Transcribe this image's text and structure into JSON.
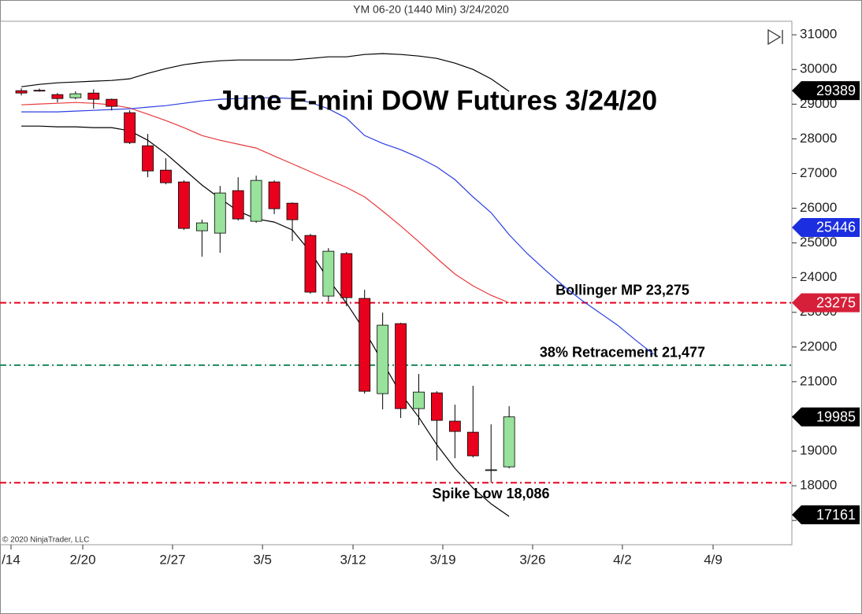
{
  "chart_data": {
    "type": "candlestick",
    "title": "YM 06-20 (1440 Min)  3/24/2020",
    "subtitle": "June E-mini DOW Futures 3/24/20",
    "copyright": "© 2020 NinjaTrader, LLC",
    "up_color": "#98e29b",
    "down_color": "#e8001c",
    "x": [
      0,
      1,
      2,
      3,
      4,
      5,
      6,
      7,
      8,
      9,
      10,
      11,
      12,
      13,
      14,
      15,
      16,
      17,
      18,
      19,
      20,
      21,
      22,
      23,
      24,
      25,
      26,
      27
    ],
    "open": [
      29389,
      29400,
      29276,
      29185,
      29320,
      29140,
      28754,
      27801,
      27098,
      26758,
      25351,
      25283,
      26508,
      25624,
      26758,
      26145,
      25215,
      23468,
      24693,
      23400,
      20655,
      22674,
      20224,
      20678,
      19862,
      19543,
      18455,
      18545
    ],
    "high": [
      29457,
      29450,
      29321,
      29370,
      29430,
      29160,
      28822,
      28142,
      27438,
      26803,
      25669,
      26644,
      26894,
      26939,
      26803,
      26168,
      25260,
      24852,
      24739,
      23650,
      22992,
      22697,
      21222,
      20723,
      20338,
      20882,
      19770,
      20292
    ],
    "low": [
      29253,
      29360,
      29050,
      29140,
      28870,
      28820,
      27850,
      26894,
      26690,
      25374,
      24603,
      24716,
      25646,
      25578,
      25828,
      25056,
      23536,
      23310,
      23173,
      20655,
      20201,
      19952,
      19748,
      18727,
      18795,
      18818,
      18090,
      18500
    ],
    "close": [
      29321,
      29390,
      29162,
      29300,
      29140,
      28936,
      27892,
      27075,
      26735,
      25419,
      25578,
      26440,
      25692,
      26803,
      25987,
      25669,
      23582,
      24761,
      23423,
      20723,
      22629,
      20224,
      20700,
      19884,
      19566,
      18863,
      18460,
      19985
    ],
    "lines": [
      {
        "name": "Bollinger upper",
        "color": "#000000",
        "x": [
          0,
          1,
          2,
          3,
          4,
          5,
          6,
          7,
          8,
          9,
          10,
          11,
          12,
          13,
          14,
          15,
          16,
          17,
          18,
          19,
          20,
          21,
          22,
          23,
          24,
          25,
          26,
          27
        ],
        "values": [
          29503,
          29571,
          29616,
          29639,
          29662,
          29684,
          29730,
          29888,
          30025,
          30138,
          30206,
          30251,
          30274,
          30274,
          30274,
          30274,
          30319,
          30365,
          30365,
          30433,
          30456,
          30433,
          30387,
          30319,
          30183,
          30002,
          29730,
          29367
        ]
      },
      {
        "name": "Bollinger middle",
        "color": "#e8393c",
        "x": [
          0,
          1,
          2,
          3,
          4,
          5,
          6,
          7,
          8,
          9,
          10,
          11,
          12,
          13,
          14,
          15,
          16,
          17,
          18,
          19,
          20,
          21,
          22,
          23,
          24,
          25,
          26,
          27
        ],
        "values": [
          28981,
          29004,
          29026,
          29049,
          29026,
          28981,
          28890,
          28710,
          28527,
          28323,
          28096,
          27960,
          27847,
          27734,
          27506,
          27280,
          27053,
          26826,
          26599,
          26327,
          25919,
          25488,
          25034,
          24557,
          24104,
          23763,
          23491,
          23275
        ]
      },
      {
        "name": "Bollinger lower",
        "color": "#000000",
        "x": [
          0,
          1,
          2,
          3,
          4,
          5,
          6,
          7,
          8,
          9,
          10,
          11,
          12,
          13,
          14,
          15,
          16,
          17,
          18,
          19,
          20,
          21,
          22,
          23,
          24,
          25,
          26,
          27
        ],
        "values": [
          28368,
          28368,
          28346,
          28346,
          28323,
          28323,
          28232,
          27960,
          27574,
          27121,
          26667,
          26281,
          25919,
          25692,
          25601,
          25374,
          24739,
          23945,
          23264,
          22470,
          21563,
          20655,
          19975,
          19181,
          18500,
          17933,
          17479,
          17116
        ]
      },
      {
        "name": "Moving average",
        "color": "#2b3fe0",
        "x": [
          0,
          1,
          2,
          3,
          4,
          5,
          6,
          7,
          8,
          9,
          10,
          11,
          12,
          13,
          14,
          15,
          16,
          17,
          18,
          19,
          20,
          21,
          22,
          23,
          24,
          25,
          26,
          27,
          28,
          29,
          30,
          31,
          32,
          33,
          34,
          35
        ],
        "values": [
          28777,
          28777,
          28777,
          28800,
          28822,
          28845,
          28867,
          28913,
          28958,
          29026,
          29094,
          29140,
          29162,
          29185,
          29185,
          29162,
          29049,
          28867,
          28595,
          28096,
          27869,
          27688,
          27461,
          27189,
          26826,
          26327,
          25873,
          25238,
          24693,
          24217,
          23763,
          23355,
          22992,
          22629,
          22198,
          21790
        ]
      }
    ],
    "hlines": [
      {
        "value": 23275,
        "color": "#e8001c",
        "label": "Bollinger MP 23,275"
      },
      {
        "value": 21477,
        "color": "#1a8a5a",
        "label": "38% Retracement 21,477"
      },
      {
        "value": 18086,
        "color": "#e8001c",
        "label": "Spike Low 18,086"
      }
    ],
    "price_markers": [
      {
        "value": 29389,
        "color": "#000000"
      },
      {
        "value": 25446,
        "color": "#1b2ee0"
      },
      {
        "value": 23275,
        "color": "#d6203a"
      },
      {
        "value": 19985,
        "color": "#000000"
      },
      {
        "value": 17161,
        "color": "#000000"
      }
    ],
    "xlim": [
      -1.18,
      42.65
    ],
    "xticks": [
      {
        "value": -0.57,
        "label": "/14"
      },
      {
        "value": 3.4,
        "label": "2/20"
      },
      {
        "value": 8.37,
        "label": "2/27"
      },
      {
        "value": 13.35,
        "label": "3/5"
      },
      {
        "value": 18.36,
        "label": "3/12"
      },
      {
        "value": 23.33,
        "label": "3/19"
      },
      {
        "value": 28.3,
        "label": "3/26"
      },
      {
        "value": 33.27,
        "label": "4/2"
      },
      {
        "value": 38.29,
        "label": "4/9"
      }
    ],
    "ylim": [
      16300,
      31390
    ],
    "yticks": [
      17000,
      18000,
      19000,
      20000,
      21000,
      22000,
      23000,
      24000,
      25000,
      26000,
      27000,
      28000,
      29000,
      30000,
      31000
    ]
  }
}
